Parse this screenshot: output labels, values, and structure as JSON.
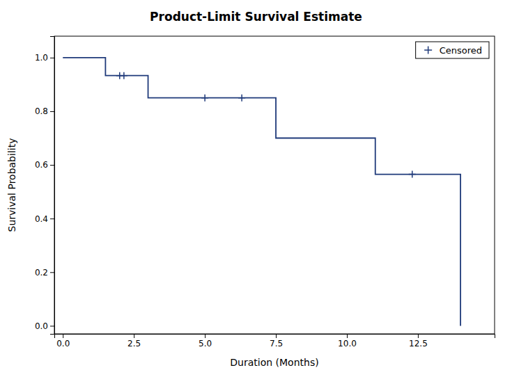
{
  "chart_data": {
    "type": "line",
    "title": "Product-Limit Survival Estimate",
    "xlabel": "Duration (Months)",
    "ylabel": "Survival Probability",
    "xlim": [
      -0.3,
      15.2
    ],
    "ylim": [
      -0.03,
      1.08
    ],
    "xticks": [
      {
        "value": 0.0,
        "label": "0.0"
      },
      2.5,
      {
        "value": 5.0,
        "label": "5.0"
      },
      7.5,
      {
        "value": 10.0,
        "label": "10.0"
      },
      12.5
    ],
    "yticks": [
      {
        "value": 0.0,
        "label": "0.0"
      },
      0.2,
      0.4,
      0.6,
      0.8,
      {
        "value": 1.0,
        "label": "1.0"
      }
    ],
    "grid": false,
    "legend": "upper right",
    "series": [
      {
        "type": "line",
        "color": "#1F3A7A",
        "x": [
          0.0,
          1.5,
          1.5,
          3.0,
          3.0,
          7.5,
          7.5,
          11.0,
          11.0,
          14.0,
          14.0
        ],
        "values": [
          1.0,
          1.0,
          0.933,
          0.933,
          0.85,
          0.85,
          0.7,
          0.7,
          0.565,
          0.565,
          0.0
        ]
      },
      {
        "name": "Censored",
        "type": "scatter",
        "marker": "+",
        "color": "#1F3A7A",
        "x": [
          2.0,
          2.15,
          5.0,
          6.3,
          12.3
        ],
        "values": [
          0.933,
          0.933,
          0.85,
          0.85,
          0.565
        ]
      }
    ]
  }
}
